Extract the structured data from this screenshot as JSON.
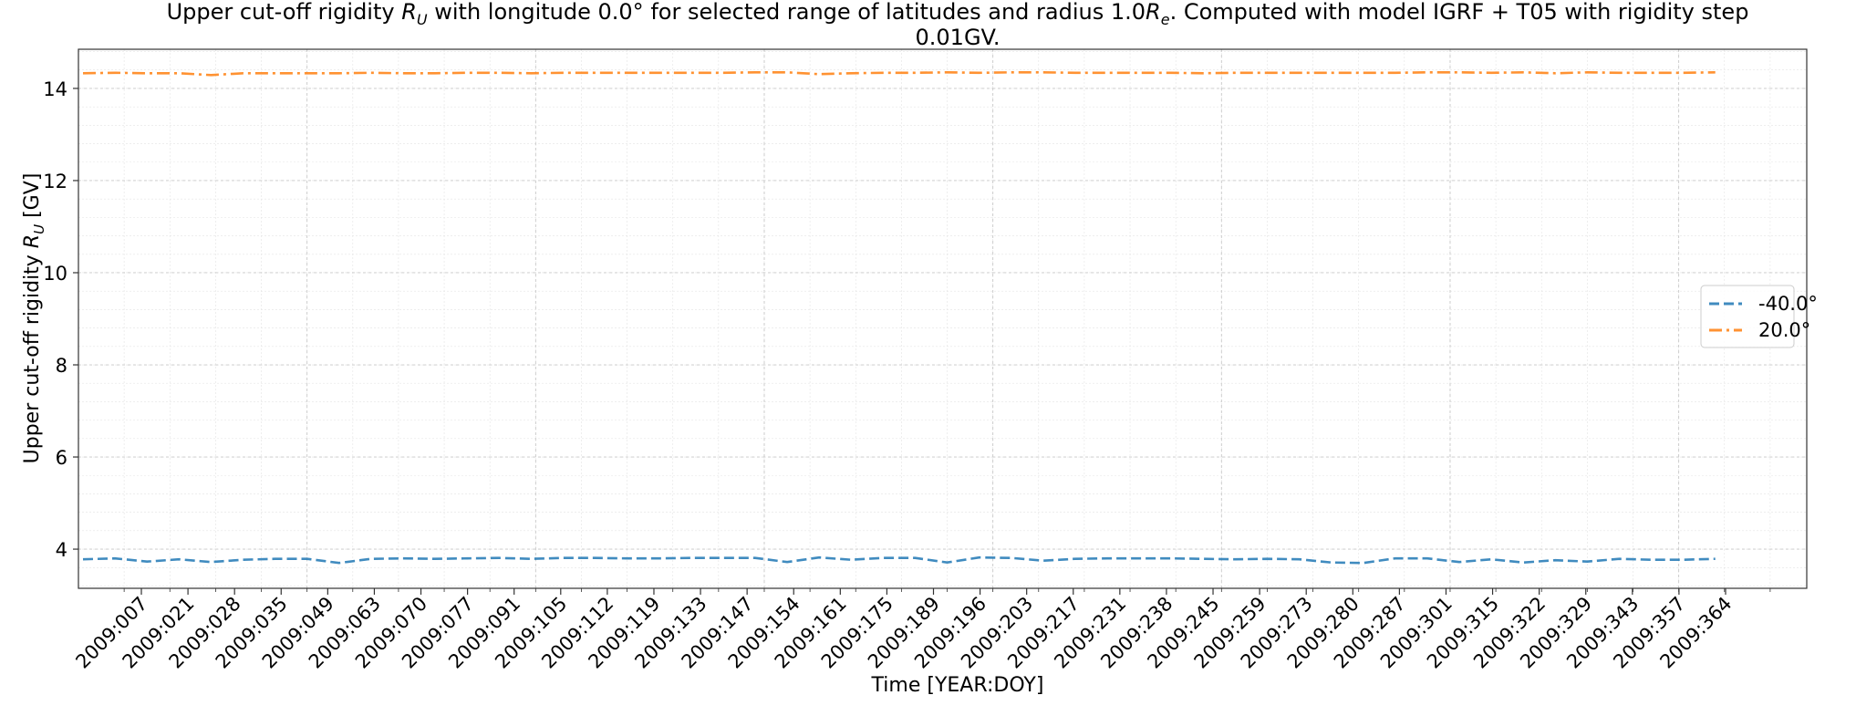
{
  "chart_data": {
    "type": "line",
    "title": "Upper cut-off rigidity R_U with longitude 0.0° for selected range of latitudes and radius 1.0R_e. Computed with model IGRF + T05 with rigidity step 0.01GV.",
    "title_line1": {
      "pre": "Upper cut-off rigidity ",
      "sym": "R",
      "sub": "U",
      "mid": " with longitude 0.0° for selected range of latitudes and radius 1.0",
      "sym2": "R",
      "sub2": "e",
      "post": ". Computed with model IGRF + T05 with rigidity step"
    },
    "title_line2": "0.01GV.",
    "xlabel": "Time [YEAR:DOY]",
    "ylabel": {
      "pre": "Upper cut-off rigidity ",
      "sym": "R",
      "sub": "U",
      "post": " [GV]"
    },
    "xlim": [
      0,
      378
    ],
    "ylim": [
      3.15,
      14.85
    ],
    "y_ticks": [
      4,
      6,
      8,
      10,
      12,
      14
    ],
    "x_tick_labels": [
      "2009:007",
      "2009:021",
      "2009:028",
      "2009:035",
      "2009:049",
      "2009:063",
      "2009:070",
      "2009:077",
      "2009:091",
      "2009:105",
      "2009:112",
      "2009:119",
      "2009:133",
      "2009:147",
      "2009:154",
      "2009:161",
      "2009:175",
      "2009:189",
      "2009:196",
      "2009:203",
      "2009:217",
      "2009:231",
      "2009:238",
      "2009:245",
      "2009:259",
      "2009:273",
      "2009:280",
      "2009:287",
      "2009:301",
      "2009:315",
      "2009:322",
      "2009:329",
      "2009:343",
      "2009:357",
      "2009:364"
    ],
    "grid": true,
    "legend_position": "center-right",
    "x": [
      1,
      8,
      15,
      22,
      29,
      36,
      43,
      50,
      57,
      64,
      71,
      78,
      85,
      92,
      99,
      106,
      113,
      120,
      127,
      134,
      141,
      148,
      155,
      162,
      169,
      176,
      183,
      190,
      197,
      204,
      211,
      218,
      225,
      232,
      239,
      246,
      253,
      260,
      267,
      274,
      281,
      288,
      295,
      302,
      309,
      316,
      323,
      330,
      337,
      344,
      351,
      358
    ],
    "series": [
      {
        "name": "-40.0°",
        "color": "#1f77b4",
        "dash": "dashed",
        "values": [
          3.78,
          3.8,
          3.73,
          3.78,
          3.72,
          3.77,
          3.79,
          3.79,
          3.7,
          3.79,
          3.8,
          3.79,
          3.8,
          3.81,
          3.79,
          3.81,
          3.81,
          3.8,
          3.8,
          3.81,
          3.81,
          3.81,
          3.72,
          3.82,
          3.77,
          3.81,
          3.81,
          3.71,
          3.82,
          3.81,
          3.75,
          3.79,
          3.8,
          3.8,
          3.8,
          3.79,
          3.78,
          3.79,
          3.78,
          3.71,
          3.7,
          3.8,
          3.8,
          3.72,
          3.78,
          3.71,
          3.76,
          3.73,
          3.79,
          3.77,
          3.77,
          3.79
        ]
      },
      {
        "name": "20.0°",
        "color": "#ff7f0e",
        "dash": "dashdot",
        "values": [
          14.33,
          14.34,
          14.33,
          14.33,
          14.29,
          14.33,
          14.33,
          14.33,
          14.33,
          14.34,
          14.33,
          14.33,
          14.34,
          14.34,
          14.33,
          14.34,
          14.34,
          14.34,
          14.34,
          14.34,
          14.34,
          14.35,
          14.35,
          14.31,
          14.33,
          14.34,
          14.34,
          14.35,
          14.34,
          14.35,
          14.35,
          14.34,
          14.34,
          14.34,
          14.34,
          14.33,
          14.34,
          14.34,
          14.34,
          14.34,
          14.34,
          14.34,
          14.35,
          14.35,
          14.34,
          14.35,
          14.33,
          14.35,
          14.34,
          14.34,
          14.34,
          14.35
        ]
      }
    ]
  }
}
